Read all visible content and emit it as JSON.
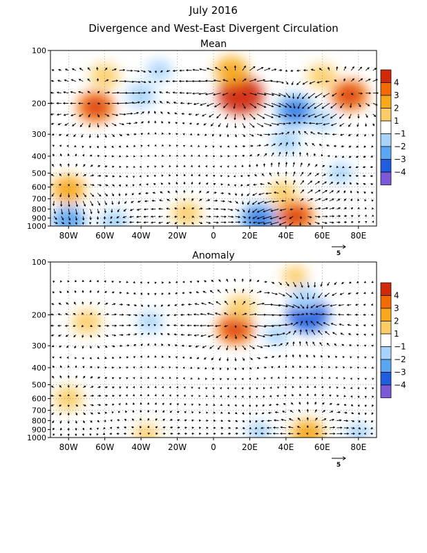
{
  "title": "July 2016",
  "subtitle": "Divergence and West-East Divergent Circulation",
  "chart_data": [
    {
      "type": "heatmap",
      "title": "Mean",
      "x_ticks": [
        "80W",
        "60W",
        "40W",
        "20W",
        "0",
        "20E",
        "40E",
        "60E",
        "80E"
      ],
      "x_values": [
        -80,
        -60,
        -40,
        -20,
        0,
        20,
        40,
        60,
        80
      ],
      "xlim": [
        -90,
        90
      ],
      "y_ticks": [
        "100",
        "200",
        "300",
        "400",
        "500",
        "600",
        "700",
        "800",
        "900",
        "1000"
      ],
      "y_values": [
        100,
        200,
        300,
        400,
        500,
        600,
        700,
        800,
        900,
        1000
      ],
      "ylim": [
        1000,
        100
      ],
      "y_scale": "log",
      "vector_reference": "5",
      "grid": "dotted",
      "divergence_regions": [
        {
          "lon": -65,
          "p": 210,
          "value": 2.5
        },
        {
          "lon": -60,
          "p": 140,
          "value": 1.5
        },
        {
          "lon": 15,
          "p": 180,
          "value": 3.5
        },
        {
          "lon": 10,
          "p": 130,
          "value": 2.0
        },
        {
          "lon": 75,
          "p": 180,
          "value": 2.5
        },
        {
          "lon": 60,
          "p": 140,
          "value": 1.5
        },
        {
          "lon": -80,
          "p": 620,
          "value": 2.0
        },
        {
          "lon": -15,
          "p": 850,
          "value": 1.5
        },
        {
          "lon": 45,
          "p": 880,
          "value": 2.5
        },
        {
          "lon": 38,
          "p": 650,
          "value": 1.5
        },
        {
          "lon": -40,
          "p": 180,
          "value": -1.5
        },
        {
          "lon": -30,
          "p": 130,
          "value": -1.0
        },
        {
          "lon": 45,
          "p": 220,
          "value": -2.5
        },
        {
          "lon": 40,
          "p": 330,
          "value": -1.5
        },
        {
          "lon": 60,
          "p": 250,
          "value": -1.0
        },
        {
          "lon": -80,
          "p": 930,
          "value": -2.0
        },
        {
          "lon": -55,
          "p": 950,
          "value": -1.5
        },
        {
          "lon": 25,
          "p": 920,
          "value": -2.5
        },
        {
          "lon": 70,
          "p": 500,
          "value": -1.0
        }
      ]
    },
    {
      "type": "heatmap",
      "title": "Anomaly",
      "x_ticks": [
        "80W",
        "60W",
        "40W",
        "20W",
        "0",
        "20E",
        "40E",
        "60E",
        "80E"
      ],
      "x_values": [
        -80,
        -60,
        -40,
        -20,
        0,
        20,
        40,
        60,
        80
      ],
      "xlim": [
        -90,
        90
      ],
      "y_ticks": [
        "100",
        "200",
        "300",
        "400",
        "500",
        "600",
        "700",
        "800",
        "900",
        "1000"
      ],
      "y_values": [
        100,
        200,
        300,
        400,
        500,
        600,
        700,
        800,
        900,
        1000
      ],
      "ylim": [
        1000,
        100
      ],
      "y_scale": "log",
      "vector_reference": "5",
      "grid": "dotted",
      "divergence_regions": [
        {
          "lon": -70,
          "p": 220,
          "value": 1.5
        },
        {
          "lon": 12,
          "p": 240,
          "value": 2.5
        },
        {
          "lon": 15,
          "p": 180,
          "value": 1.5
        },
        {
          "lon": 45,
          "p": 120,
          "value": 1.0
        },
        {
          "lon": -80,
          "p": 600,
          "value": 1.5
        },
        {
          "lon": 52,
          "p": 950,
          "value": 2.0
        },
        {
          "lon": -37,
          "p": 960,
          "value": 1.0
        },
        {
          "lon": 52,
          "p": 200,
          "value": -3.0
        },
        {
          "lon": 50,
          "p": 160,
          "value": -1.5
        },
        {
          "lon": -35,
          "p": 220,
          "value": -1.0
        },
        {
          "lon": 35,
          "p": 260,
          "value": -1.0
        },
        {
          "lon": 25,
          "p": 930,
          "value": -1.0
        },
        {
          "lon": 80,
          "p": 950,
          "value": -1.0
        }
      ]
    }
  ],
  "colorbar": {
    "labels": [
      "4",
      "3",
      "2",
      "1",
      "−1",
      "−2",
      "−3",
      "−4"
    ],
    "colors": [
      "#d12a0a",
      "#f26a06",
      "#f7a91e",
      "#fccd67",
      "#ffffff",
      "#a8d4fb",
      "#5aa6f1",
      "#1f5ede",
      "#7a5ad8"
    ]
  }
}
